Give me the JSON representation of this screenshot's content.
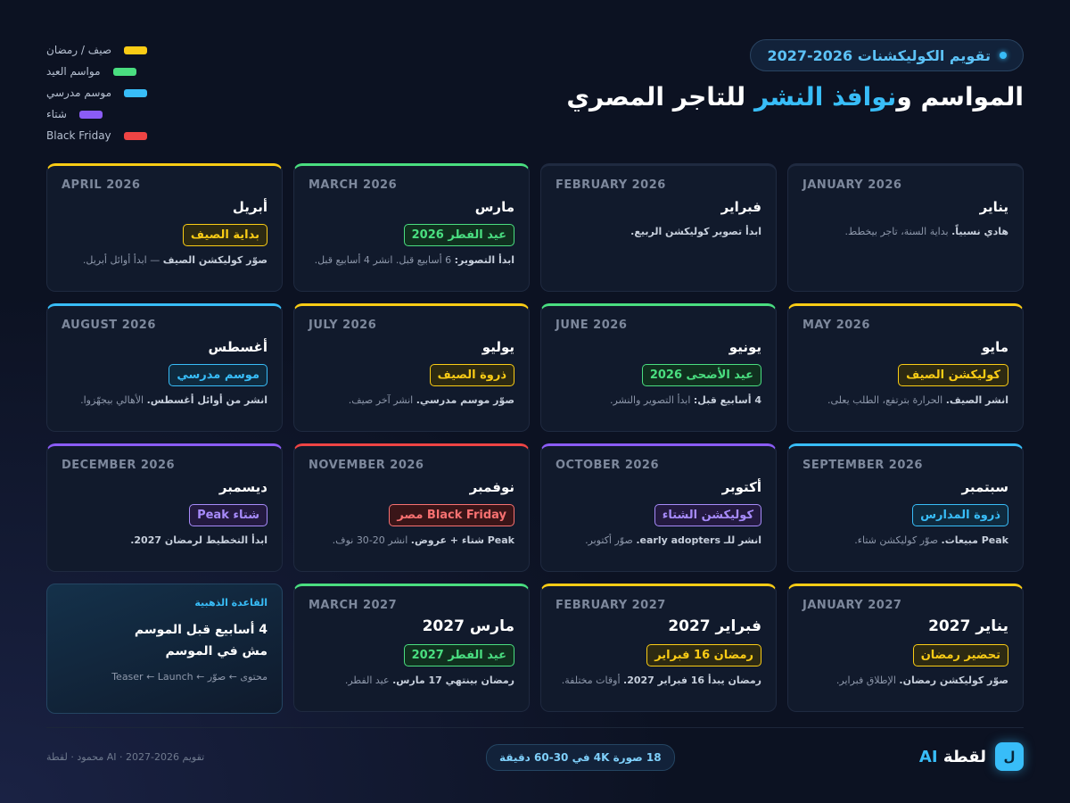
{
  "header": {
    "pill": "تقويم الكوليكشنات 2026-2027",
    "title_a": "المواسم و",
    "title_b": "نوافذ النشر",
    "title_c": " للتاجر المصري"
  },
  "legend": [
    {
      "label": "صيف / رمضان",
      "color": "#facc15"
    },
    {
      "label": "مواسم العيد",
      "color": "#4ade80"
    },
    {
      "label": "موسم مدرسي",
      "color": "#38bdf8"
    },
    {
      "label": "شتاء",
      "color": "#8b5cf6"
    },
    {
      "label": "Black Friday",
      "color": "#ef4444"
    }
  ],
  "cards": [
    {
      "en": "JANUARY 2026",
      "ar": "يناير",
      "accent": "#1f2a40",
      "badge": "",
      "note_b": "هادي نسبياً.",
      "note": " بداية السنة، تاجر بيخطط."
    },
    {
      "en": "FEBRUARY 2026",
      "ar": "فبراير",
      "accent": "#1f2a40",
      "badge": "",
      "note_b": "ابدأ تصوير كوليكشن الربيع.",
      "note": ""
    },
    {
      "en": "MARCH 2026",
      "ar": "مارس",
      "accent": "#4ade80",
      "badge": "عيد الفطر 2026",
      "badge_color": "#4ade80",
      "badge_bg": "#10301f",
      "note_b": "ابدأ التصوير:",
      "note": " 6 أسابيع قبل. انشر 4 أسابيع قبل."
    },
    {
      "en": "APRIL 2026",
      "ar": "أبريل",
      "accent": "#facc15",
      "badge": "بداية الصيف",
      "badge_color": "#facc15",
      "badge_bg": "#2d2a12",
      "note_b": "صوّر كوليكشن الصيف",
      "note": " — ابدأ أوائل أبريل."
    },
    {
      "en": "MAY 2026",
      "ar": "مايو",
      "accent": "#facc15",
      "badge": "كوليكشن الصيف",
      "badge_color": "#facc15",
      "badge_bg": "#2d2a12",
      "note_b": "انشر الصيف.",
      "note": " الحرارة بترتفع، الطلب يعلى."
    },
    {
      "en": "JUNE 2026",
      "ar": "يونيو",
      "accent": "#4ade80",
      "badge": "عيد الأضحى 2026",
      "badge_color": "#4ade80",
      "badge_bg": "#10301f",
      "note_b": "4 أسابيع قبل:",
      "note": " ابدأ التصوير والنشر."
    },
    {
      "en": "JULY 2026",
      "ar": "يوليو",
      "accent": "#facc15",
      "badge": "ذروة الصيف",
      "badge_color": "#facc15",
      "badge_bg": "#2d2a12",
      "note_b": "صوّر موسم مدرسي.",
      "note": " انشر آخر صيف."
    },
    {
      "en": "AUGUST 2026",
      "ar": "أغسطس",
      "accent": "#38bdf8",
      "badge": "موسم مدرسي",
      "badge_color": "#38bdf8",
      "badge_bg": "#0f2a3e",
      "note_b": "انشر من أوائل أغسطس.",
      "note": " الأهالي بيجهّزوا."
    },
    {
      "en": "SEPTEMBER 2026",
      "ar": "سبتمبر",
      "accent": "#38bdf8",
      "badge": "ذروة المدارس",
      "badge_color": "#38bdf8",
      "badge_bg": "#0f2a3e",
      "note_b": "Peak مبيعات.",
      "note": " صوّر كوليكشن شتاء."
    },
    {
      "en": "OCTOBER 2026",
      "ar": "أكتوبر",
      "accent": "#8b5cf6",
      "badge": "كوليكشن الشتاء",
      "badge_color": "#a78bfa",
      "badge_bg": "#231a40",
      "note_b": "انشر للـ early adopters.",
      "note": " صوّر أكتوبر."
    },
    {
      "en": "NOVEMBER 2026",
      "ar": "نوفمبر",
      "accent": "#ef4444",
      "badge": "Black Friday مصر",
      "badge_color": "#f87171",
      "badge_bg": "#3a1518",
      "note_b": "Peak شتاء + عروض.",
      "note": " انشر 20-30 نوف."
    },
    {
      "en": "DECEMBER 2026",
      "ar": "ديسمبر",
      "accent": "#8b5cf6",
      "badge": "شتاء Peak",
      "badge_color": "#a78bfa",
      "badge_bg": "#231a40",
      "note_b": "ابدأ التخطيط لرمضان 2027.",
      "note": ""
    },
    {
      "en": "JANUARY 2027",
      "ar": "يناير 2027",
      "accent": "#facc15",
      "big": true,
      "badge": "تحضير رمضان",
      "badge_color": "#facc15",
      "badge_bg": "#2d2a12",
      "note_b": "صوّر كوليكشن رمضان.",
      "note": " الإطلاق فبراير."
    },
    {
      "en": "FEBRUARY 2027",
      "ar": "فبراير 2027",
      "accent": "#facc15",
      "big": true,
      "badge": "رمضان 16 فبراير",
      "badge_color": "#facc15",
      "badge_bg": "#2d2a12",
      "note_b": "رمضان يبدأ 16 فبراير 2027.",
      "note": " أوقات مختلفة."
    },
    {
      "en": "MARCH 2027",
      "ar": "مارس 2027",
      "accent": "#4ade80",
      "big": true,
      "badge": "عيد الفطر 2027",
      "badge_color": "#4ade80",
      "badge_bg": "#10301f",
      "note_b": "رمضان بينتهي 17 مارس.",
      "note": " عيد الفطر."
    }
  ],
  "rule": {
    "kicker": "القاعدة الذهبية",
    "line1": "4 أسابيع قبل الموسم",
    "line2": "مش في الموسم",
    "sub": "Teaser ← Launch ← محتوى ← صوّر"
  },
  "footer": {
    "left": "محمود · لقطة AI · تقويم 2026-2027",
    "pill": "18 صورة 4K في 30-60 دقيقة",
    "logo": "ل",
    "brand_a": "لقطة ",
    "brand_b": "AI"
  }
}
